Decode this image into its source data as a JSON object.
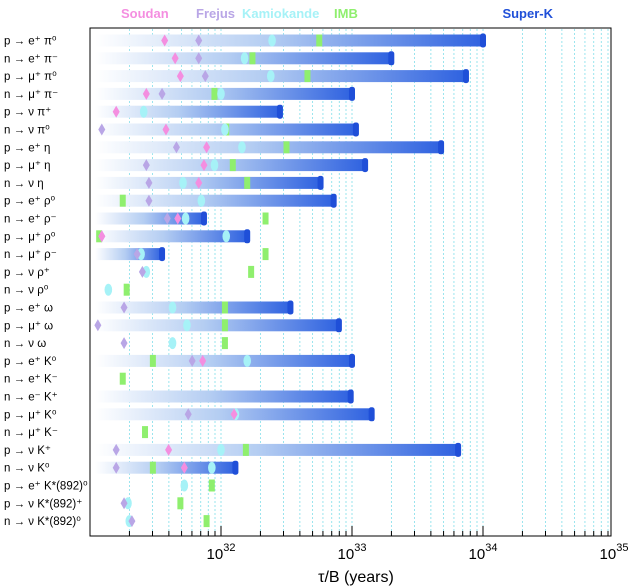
{
  "chart_data": {
    "type": "range-bar",
    "title": "",
    "xlabel": "τ/B (years)",
    "xscale": "log",
    "xlim_exponent": [
      31.0,
      35.0
    ],
    "xticks": [
      {
        "base": "10",
        "exp": "32",
        "value": 32
      },
      {
        "base": "10",
        "exp": "33",
        "value": 33
      },
      {
        "base": "10",
        "exp": "34",
        "value": 34
      },
      {
        "base": "10",
        "exp": "35",
        "value": 35
      }
    ],
    "legend": [
      {
        "key": "soudan",
        "label": "Soudan",
        "color": "#f48ee0",
        "shape": "diamond"
      },
      {
        "key": "frejus",
        "label": "Frejus",
        "color": "#b9a6e6",
        "shape": "diamond"
      },
      {
        "key": "kamiokande",
        "label": "Kamiokande",
        "color": "#a6f2f7",
        "shape": "ellipse"
      },
      {
        "key": "imb",
        "label": "IMB",
        "color": "#8fef6e",
        "shape": "rect"
      },
      {
        "key": "superk",
        "label": "Super-K",
        "color": "#1f4fd8",
        "shape": "bar"
      }
    ],
    "modes": [
      {
        "label": "p → e⁺ π⁰",
        "soudan": 31.57,
        "frejus": 31.83,
        "kamiokande": 32.39,
        "imb": 32.75,
        "superk": 34.0
      },
      {
        "label": "n → e⁺ π⁻",
        "soudan": 31.65,
        "frejus": 31.83,
        "kamiokande": 32.18,
        "imb": 32.24,
        "superk": 33.3
      },
      {
        "label": "p → μ⁺ π⁰",
        "soudan": 31.69,
        "frejus": 31.88,
        "kamiokande": 32.38,
        "imb": 32.66,
        "superk": 33.87
      },
      {
        "label": "n → μ⁺ π⁻",
        "soudan": 31.43,
        "frejus": 31.55,
        "kamiokande": 32.0,
        "imb": 31.95,
        "superk": 33.0
      },
      {
        "label": "p → ν π⁺",
        "soudan": 31.2,
        "frejus": null,
        "kamiokande": 31.41,
        "imb": null,
        "superk": 32.45
      },
      {
        "label": "n → ν π⁰",
        "soudan": 31.58,
        "frejus": 31.09,
        "kamiokande": 32.03,
        "imb": 32.04,
        "superk": 33.03
      },
      {
        "label": "p → e⁺ η",
        "soudan": 31.89,
        "frejus": 31.66,
        "kamiokande": 32.16,
        "imb": 32.5,
        "superk": 33.68
      },
      {
        "label": "p → μ⁺ η",
        "soudan": 31.87,
        "frejus": 31.43,
        "kamiokande": 31.95,
        "imb": 32.09,
        "superk": 33.1
      },
      {
        "label": "n → ν η",
        "soudan": 31.83,
        "frejus": 31.45,
        "kamiokande": 31.71,
        "imb": 32.2,
        "superk": 32.76
      },
      {
        "label": "p → e⁺ ρ⁰",
        "soudan": null,
        "frejus": 31.45,
        "kamiokande": 31.85,
        "imb": 31.25,
        "superk": 32.86
      },
      {
        "label": "n → e⁺ ρ⁻",
        "soudan": 31.67,
        "frejus": 31.59,
        "kamiokande": 31.73,
        "imb": 32.34,
        "superk": 31.87
      },
      {
        "label": "p → μ⁺ ρ⁰",
        "soudan": 31.09,
        "frejus": 31.09,
        "kamiokande": 32.04,
        "imb": 31.07,
        "superk": 32.2
      },
      {
        "label": "n → μ⁺ ρ⁻",
        "soudan": null,
        "frejus": 31.36,
        "kamiokande": 31.39,
        "imb": 32.34,
        "superk": 31.55
      },
      {
        "label": "p → ν ρ⁺",
        "soudan": null,
        "frejus": 31.4,
        "kamiokande": 31.43,
        "imb": 32.23,
        "superk": null
      },
      {
        "label": "n → ν ρ⁰",
        "soudan": null,
        "frejus": null,
        "kamiokande": 31.14,
        "imb": 31.28,
        "superk": null
      },
      {
        "label": "p → e⁺ ω",
        "soudan": null,
        "frejus": 31.26,
        "kamiokande": 31.63,
        "imb": 32.03,
        "superk": 32.53
      },
      {
        "label": "p → μ⁺ ω",
        "soudan": null,
        "frejus": 31.06,
        "kamiokande": 31.74,
        "imb": 32.03,
        "superk": 32.9
      },
      {
        "label": "n → ν ω",
        "soudan": null,
        "frejus": 31.26,
        "kamiokande": 31.63,
        "imb": 32.03,
        "superk": null
      },
      {
        "label": "p → e⁺ K⁰",
        "soudan": 31.86,
        "frejus": 31.78,
        "kamiokande": 32.2,
        "imb": 31.48,
        "superk": 33.0
      },
      {
        "label": "n → e⁺ K⁻",
        "soudan": null,
        "frejus": null,
        "kamiokande": null,
        "imb": 31.25,
        "superk": null
      },
      {
        "label": "n → e⁻ K⁺",
        "soudan": null,
        "frejus": null,
        "kamiokande": null,
        "imb": null,
        "superk": 32.99
      },
      {
        "label": "p → μ⁺ K⁰",
        "soudan": 32.1,
        "frejus": 31.75,
        "kamiokande": 32.11,
        "imb": null,
        "superk": 33.15
      },
      {
        "label": "n → μ⁺ K⁻",
        "soudan": null,
        "frejus": null,
        "kamiokande": null,
        "imb": 31.42,
        "superk": null
      },
      {
        "label": "p → ν K⁺",
        "soudan": 31.6,
        "frejus": 31.2,
        "kamiokande": 32.0,
        "imb": 32.19,
        "superk": 33.81
      },
      {
        "label": "n → ν K⁰",
        "soudan": 31.72,
        "frejus": 31.2,
        "kamiokande": 31.93,
        "imb": 31.48,
        "superk": 32.11
      },
      {
        "label": "p → e⁺ K*(892)⁰",
        "soudan": null,
        "frejus": null,
        "kamiokande": 31.72,
        "imb": 31.93,
        "superk": null
      },
      {
        "label": "p → ν K*(892)⁺",
        "soudan": null,
        "frejus": 31.26,
        "kamiokande": 31.29,
        "imb": 31.69,
        "superk": null
      },
      {
        "label": "n → ν K*(892)⁰",
        "soudan": null,
        "frejus": 31.32,
        "kamiokande": 31.3,
        "imb": 31.89,
        "superk": null
      }
    ]
  }
}
